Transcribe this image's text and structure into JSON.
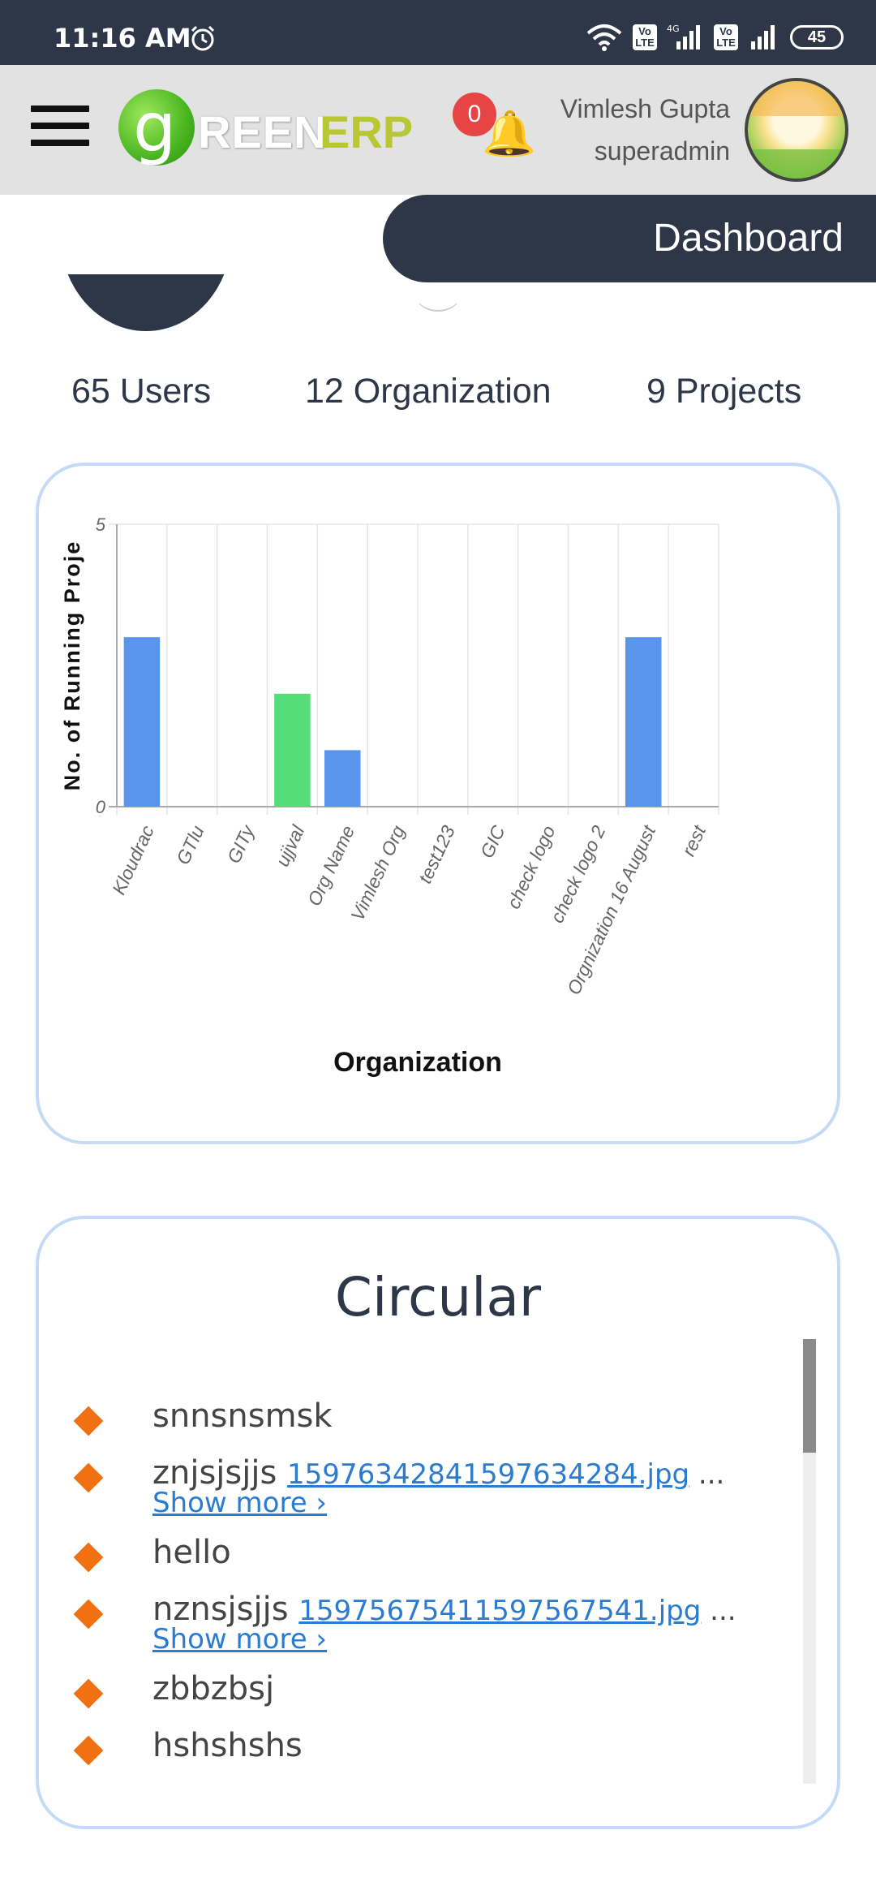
{
  "status_bar": {
    "time": "11:16 AM",
    "network_type": "4G",
    "lte_label": "Vo LTE",
    "battery": "45",
    "icons": [
      "alarm-icon",
      "wifi-icon",
      "signal-icon",
      "battery-icon"
    ]
  },
  "header": {
    "logo": {
      "g": "g",
      "reen": "REEN",
      "erp": "ERP"
    },
    "notification_count": "0",
    "user_name": "Vimlesh Gupta",
    "user_role": "superadmin",
    "icons": [
      "menu-icon",
      "bell-icon"
    ]
  },
  "dashboard_tab": {
    "label": "Dashboard"
  },
  "stats": {
    "users": "65 Users",
    "organization": "12 Organization",
    "projects": "9 Projects"
  },
  "chart_data": {
    "type": "bar",
    "title": "",
    "xlabel": "Organization",
    "ylabel": "No. of Running Proje",
    "ylim": [
      0,
      5
    ],
    "yticks": [
      "0",
      "5"
    ],
    "grid": true,
    "categories": [
      "Kloudrac",
      "GTlu",
      "GITy",
      "ujjval",
      "Org Name",
      "Vimlesh Org",
      "test123",
      "GIC",
      "check logo",
      "check logo 2",
      "Orgnization 16 August",
      "rest"
    ],
    "values": [
      3,
      0,
      0,
      2,
      1,
      0,
      0,
      0,
      0,
      0,
      3,
      0
    ],
    "bar_colors": [
      "#5995ea",
      "#5995ea",
      "#5995ea",
      "#55dd7a",
      "#5995ea",
      "#5995ea",
      "#5995ea",
      "#5995ea",
      "#5995ea",
      "#5995ea",
      "#5995ea",
      "#5995ea"
    ]
  },
  "circular": {
    "title": "Circular",
    "items": [
      {
        "text": "snnsnsmsk",
        "file": "",
        "more": ""
      },
      {
        "text": "znjsjsjjs",
        "file": "15976342841597634284.jpg",
        "more": "Show more ›"
      },
      {
        "text": "hello",
        "file": "",
        "more": ""
      },
      {
        "text": "nznsjsjjs",
        "file": "15975675411597567541.jpg",
        "more": "Show more ›"
      },
      {
        "text": "zbbzbsj",
        "file": "",
        "more": ""
      },
      {
        "text": "hshshshs",
        "file": "",
        "more": ""
      }
    ],
    "ellipsis": "...",
    "bullet_color": "#f07012"
  }
}
